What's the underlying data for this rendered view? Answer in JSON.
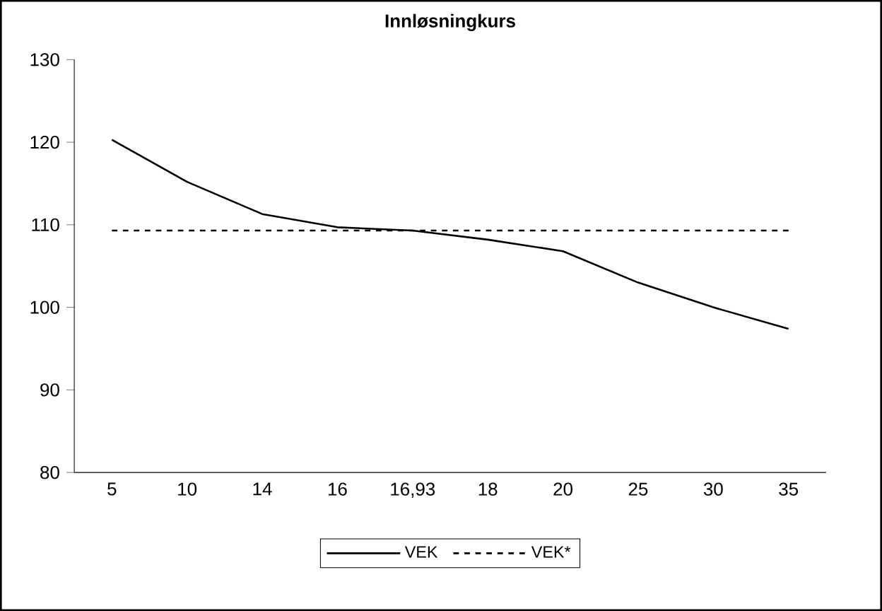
{
  "chart_data": {
    "type": "line",
    "title": "Innløsningkurs",
    "categories": [
      "5",
      "10",
      "14",
      "16",
      "16,93",
      "18",
      "20",
      "25",
      "30",
      "35"
    ],
    "series": [
      {
        "name": "VEK",
        "color": "#000000",
        "line_style": "solid",
        "values": [
          120.3,
          115.2,
          111.3,
          109.7,
          109.3,
          108.2,
          106.8,
          103.0,
          100.0,
          97.4
        ]
      },
      {
        "name": "VEK*",
        "color": "#000000",
        "line_style": "dashed",
        "values": [
          109.3,
          109.3,
          109.3,
          109.3,
          109.3,
          109.3,
          109.3,
          109.3,
          109.3,
          109.3
        ]
      }
    ],
    "ylim": [
      80,
      130
    ],
    "yticks": [
      80,
      90,
      100,
      110,
      120,
      130
    ],
    "grid": false,
    "legend": "bottom",
    "marker": "none"
  }
}
